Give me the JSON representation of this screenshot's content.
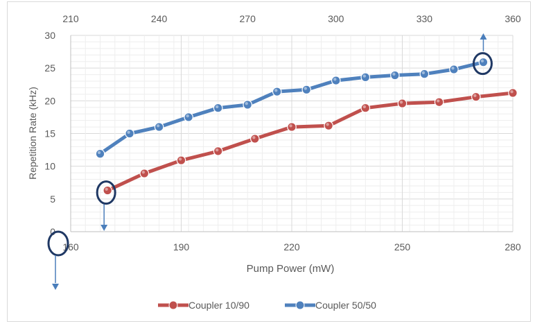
{
  "chart_data": {
    "type": "line",
    "xlabel": "Pump Power (mW)",
    "ylabel": "Repetition Rate (kHz)",
    "bottom_axis": {
      "range": [
        160,
        280
      ],
      "ticks": [
        160,
        190,
        220,
        250,
        280
      ]
    },
    "top_axis": {
      "range": [
        210,
        360
      ],
      "ticks": [
        210,
        240,
        270,
        300,
        330,
        360
      ]
    },
    "y_axis": {
      "range": [
        0,
        30
      ],
      "ticks": [
        0,
        5,
        10,
        15,
        20,
        25,
        30
      ]
    },
    "grid": true,
    "legend_position": "bottom",
    "series": [
      {
        "name": "Coupler 10/90",
        "axis": "bottom",
        "color": "#c0504d",
        "x": [
          170,
          180,
          190,
          200,
          210,
          220,
          230,
          240,
          250,
          260,
          270,
          280
        ],
        "y": [
          6.3,
          8.9,
          10.9,
          12.3,
          14.2,
          16.0,
          16.2,
          18.9,
          19.6,
          19.8,
          20.6,
          21.2
        ]
      },
      {
        "name": "Coupler 50/50",
        "axis": "top",
        "color": "#4f81bd",
        "x": [
          220,
          230,
          240,
          250,
          260,
          270,
          280,
          290,
          300,
          310,
          320,
          330,
          340,
          350
        ],
        "y": [
          11.9,
          15.0,
          16.0,
          17.5,
          18.9,
          19.4,
          21.4,
          21.7,
          23.1,
          23.6,
          23.9,
          24.1,
          24.8,
          25.9
        ]
      }
    ],
    "annotations": [
      {
        "shape": "ellipse",
        "encircles": "Coupler 10/90 first point",
        "arrow": "down to bottom axis"
      },
      {
        "shape": "ellipse",
        "encircles": "Coupler 50/50 last point",
        "arrow": "up to top axis"
      },
      {
        "shape": "ellipse",
        "encircles": "bottom axis start",
        "arrow": "down"
      }
    ],
    "annotation_color": "#1f3864",
    "arrow_color": "#4a7ebb"
  }
}
